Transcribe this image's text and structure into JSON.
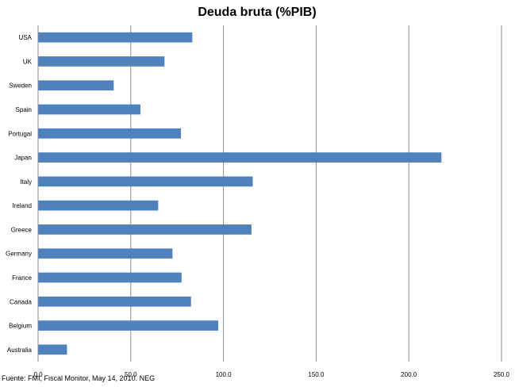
{
  "chart_data": {
    "type": "bar",
    "orientation": "horizontal",
    "title": "Deuda bruta (%PIB)",
    "categories": [
      "USA",
      "UK",
      "Sweden",
      "Spain",
      "Portugal",
      "Japan",
      "Italy",
      "Ireland",
      "Greece",
      "Germany",
      "France",
      "Canada",
      "Belgium",
      "Australia"
    ],
    "values": [
      83.2,
      68.2,
      40.8,
      55.2,
      77.1,
      217.6,
      115.8,
      64.8,
      115.1,
      72.5,
      77.4,
      82.5,
      97.2,
      15.6
    ],
    "xlim": [
      0,
      250
    ],
    "xticks": [
      0,
      50,
      100,
      150,
      200,
      250
    ],
    "xtick_labels": [
      "0.0",
      "50.0",
      "100.0",
      "150.0",
      "200.0",
      "250.0"
    ],
    "bar_color": "#4f81bd",
    "grid": "vertical-major",
    "legend": "none"
  },
  "source_note": "Fuente: FMI, Fiscal Monitor, May 14, 2010.  NEG"
}
